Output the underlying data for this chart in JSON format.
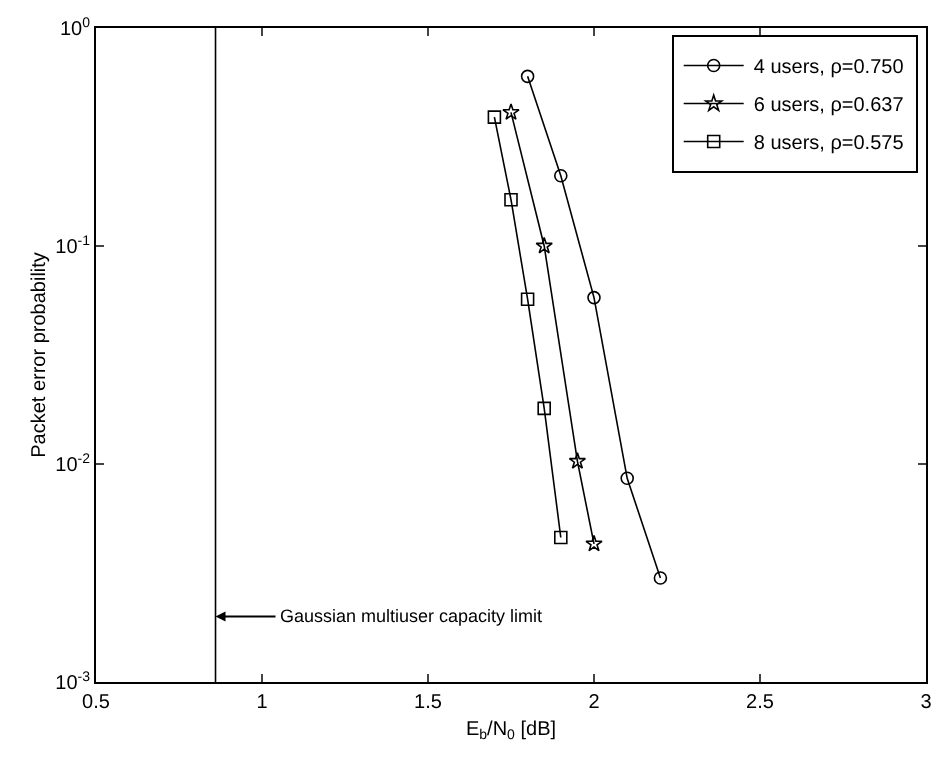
{
  "chart_data": {
    "type": "line",
    "xlabel": "E$_{b}$/N$_{0}$ [dB]",
    "ylabel": "Packet error probability",
    "log": "y",
    "legend": "top right",
    "line_style": "solid",
    "xlim": [
      0.5,
      3
    ],
    "xticks": [
      0.5,
      1,
      1.5,
      2,
      2.5,
      3
    ],
    "ylim": [
      0.001,
      1
    ],
    "yticks": [
      {
        "value": 0.001,
        "label": "10$^{-3}$"
      },
      {
        "value": 0.01,
        "label": "10$^{-2}$"
      },
      {
        "value": 0.1,
        "label": "10$^{-1}$"
      },
      {
        "value": 1,
        "label": "10$^{0}$"
      }
    ],
    "series": [
      {
        "name": "4 users, ρ=0.750",
        "color": "#000000",
        "marker": "circle",
        "x": [
          1.8,
          1.9,
          2.0,
          2.1,
          2.2
        ],
        "values": [
          0.6,
          0.21,
          0.058,
          0.0086,
          0.003
        ]
      },
      {
        "name": "6 users, ρ=0.637",
        "color": "#000000",
        "marker": "star",
        "x": [
          1.75,
          1.85,
          1.95,
          2.0
        ],
        "values": [
          0.41,
          0.1,
          0.0103,
          0.0043
        ]
      },
      {
        "name": "8 users, ρ=0.575",
        "color": "#000000",
        "marker": "square",
        "x": [
          1.7,
          1.75,
          1.8,
          1.85,
          1.9
        ],
        "values": [
          0.39,
          0.163,
          0.057,
          0.018,
          0.0046
        ]
      }
    ],
    "ref_lines": [
      {
        "axis": "x",
        "value": 0.86,
        "label": "Gaussian multiuser capacity limit",
        "color": "#000000"
      }
    ]
  }
}
